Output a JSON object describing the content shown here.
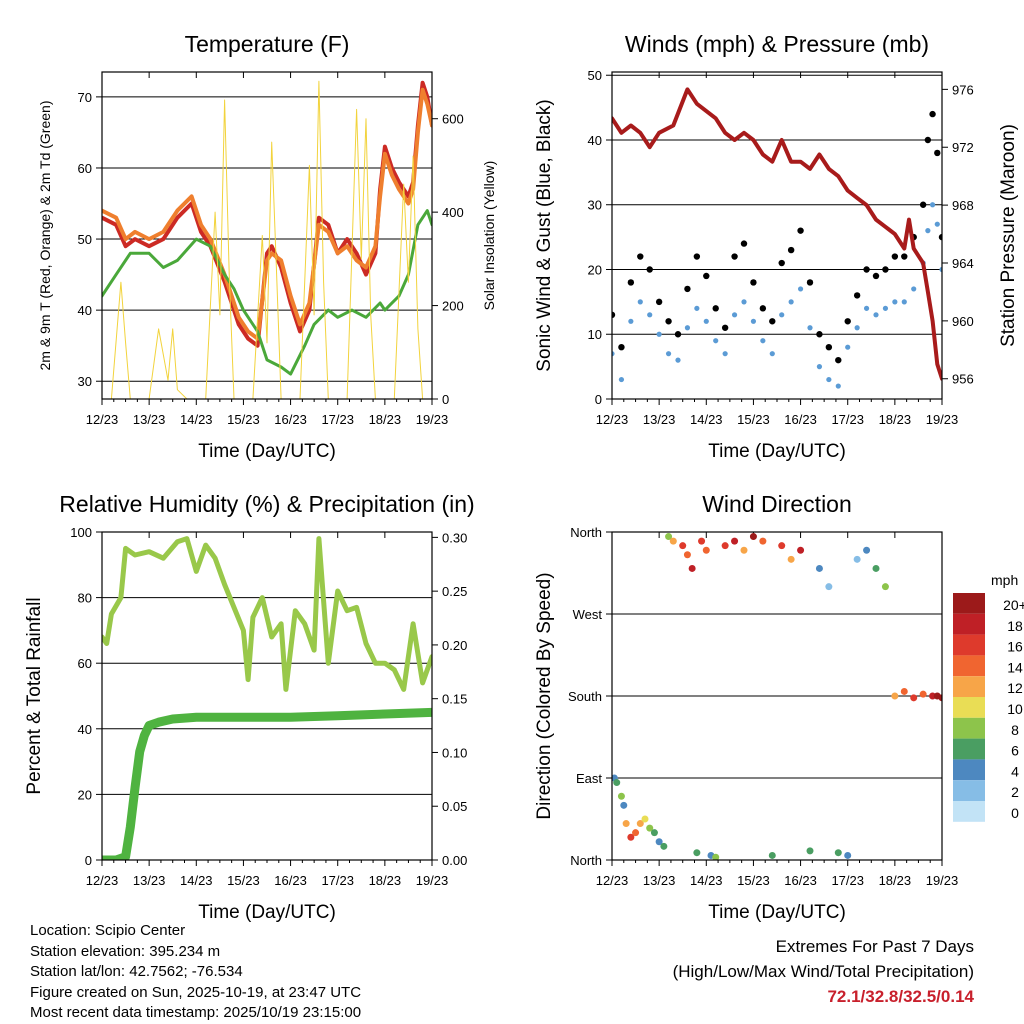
{
  "colors": {
    "temp_red": "#cc2a24",
    "temp_orange": "#ef7f2e",
    "dewpoint_green": "#4aa83a",
    "solar_yellow": "#f2d33c",
    "gust_black": "#000000",
    "wind_blue": "#5b9bd5",
    "pressure_maroon": "#a81b1b",
    "rh_lightgreen": "#99c84a",
    "precip_green": "#4fb340",
    "extremes_red": "#c8202c"
  },
  "chart_data": [
    {
      "id": "temperature",
      "type": "line",
      "title": "Temperature (F)",
      "xlabel": "Time (Day/UTC)",
      "ylabel": "2m & 9m T (Red, Orange) & 2m Td (Green)",
      "y2label": "Solar Insolation (Yellow)",
      "xticks": [
        "12/23",
        "13/23",
        "14/23",
        "15/23",
        "16/23",
        "17/23",
        "18/23",
        "19/23"
      ],
      "xlim": [
        0,
        7
      ],
      "ylim": [
        27.5,
        73.5
      ],
      "yticks": [
        30,
        40,
        50,
        60,
        70
      ],
      "y2lim": [
        0,
        700
      ],
      "y2ticks": [
        0,
        200,
        400,
        600
      ],
      "series": [
        {
          "name": "2m T",
          "color": "#cc2a24",
          "x": [
            0,
            0.3,
            0.5,
            0.7,
            1.0,
            1.3,
            1.6,
            1.9,
            2.1,
            2.3,
            2.6,
            2.8,
            2.9,
            3.1,
            3.3,
            3.5,
            3.6,
            3.8,
            4.0,
            4.2,
            4.4,
            4.6,
            4.8,
            5.0,
            5.2,
            5.4,
            5.6,
            5.8,
            5.9,
            6.0,
            6.15,
            6.3,
            6.5,
            6.6,
            6.7,
            6.8,
            6.9,
            7.0
          ],
          "y": [
            53,
            52,
            49,
            50,
            49,
            50,
            53,
            55,
            51,
            49,
            44,
            40,
            38,
            36,
            35,
            48,
            49,
            46,
            41,
            37,
            40,
            53,
            52,
            48,
            50,
            48,
            45,
            48,
            57,
            63,
            60,
            58,
            56,
            58,
            66,
            72,
            70,
            66
          ]
        },
        {
          "name": "9m T",
          "color": "#ef7f2e",
          "x": [
            0,
            0.3,
            0.5,
            0.7,
            1.0,
            1.3,
            1.6,
            1.9,
            2.1,
            2.3,
            2.6,
            2.8,
            2.9,
            3.1,
            3.3,
            3.5,
            3.6,
            3.8,
            4.0,
            4.2,
            4.4,
            4.6,
            4.8,
            5.0,
            5.2,
            5.4,
            5.6,
            5.8,
            5.9,
            6.0,
            6.15,
            6.3,
            6.5,
            6.6,
            6.7,
            6.8,
            6.9,
            7.0
          ],
          "y": [
            54,
            53,
            50,
            51,
            50,
            51,
            54,
            56,
            52,
            50,
            45,
            41,
            39,
            37,
            36,
            47,
            48,
            47,
            42,
            38,
            41,
            52,
            51,
            48,
            49,
            47,
            46,
            49,
            56,
            62,
            59,
            57,
            55,
            57,
            65,
            71,
            69,
            66
          ]
        },
        {
          "name": "2m Td",
          "color": "#4aa83a",
          "x": [
            0,
            0.3,
            0.6,
            1.0,
            1.3,
            1.6,
            2.0,
            2.3,
            2.6,
            2.8,
            3.0,
            3.3,
            3.5,
            3.8,
            4.0,
            4.3,
            4.5,
            4.8,
            5.0,
            5.3,
            5.6,
            5.9,
            6.0,
            6.3,
            6.5,
            6.7,
            6.9,
            7.0
          ],
          "y": [
            42,
            45,
            48,
            48,
            46,
            47,
            50,
            49,
            45,
            43,
            40,
            37,
            33,
            32,
            31,
            35,
            38,
            40,
            39,
            40,
            39,
            41,
            40,
            42,
            45,
            52,
            54,
            52
          ]
        },
        {
          "name": "Solar Insolation",
          "color": "#f2d33c",
          "axis": "y2",
          "x": [
            0,
            0.2,
            0.4,
            0.5,
            0.6,
            0.8,
            1.0,
            1.2,
            1.4,
            1.5,
            1.6,
            1.8,
            2.0,
            2.2,
            2.4,
            2.5,
            2.6,
            2.7,
            2.8,
            3.0,
            3.2,
            3.4,
            3.5,
            3.6,
            3.7,
            3.8,
            4.0,
            4.2,
            4.4,
            4.5,
            4.6,
            4.7,
            4.8,
            5.0,
            5.2,
            5.4,
            5.5,
            5.6,
            5.7,
            5.8,
            6.0,
            6.2,
            6.4,
            6.5,
            6.6,
            6.7,
            6.8,
            7.0
          ],
          "y": [
            0,
            0,
            250,
            120,
            0,
            0,
            0,
            150,
            40,
            150,
            20,
            0,
            0,
            0,
            400,
            180,
            640,
            260,
            0,
            0,
            0,
            350,
            120,
            550,
            280,
            0,
            0,
            0,
            500,
            180,
            680,
            250,
            0,
            0,
            0,
            620,
            300,
            600,
            180,
            0,
            0,
            0,
            460,
            250,
            520,
            150,
            0,
            0
          ]
        }
      ]
    },
    {
      "id": "winds",
      "type": "scatter",
      "title": "Winds (mph) & Pressure (mb)",
      "xlabel": "Time (Day/UTC)",
      "ylabel": "Sonic Wind & Gust (Blue, Black)",
      "y2label": "Station Pressure (Maroon)",
      "xticks": [
        "12/23",
        "13/23",
        "14/23",
        "15/23",
        "16/23",
        "17/23",
        "18/23",
        "19/23"
      ],
      "xlim": [
        0,
        7
      ],
      "ylim": [
        0,
        50.5
      ],
      "yticks": [
        0,
        10,
        20,
        30,
        40,
        50
      ],
      "y2lim": [
        954.6,
        977.2
      ],
      "y2ticks": [
        956,
        960,
        964,
        968,
        972,
        976
      ],
      "series": [
        {
          "name": "Gust",
          "color": "#000000",
          "x": [
            0,
            0.2,
            0.4,
            0.6,
            0.8,
            1.0,
            1.2,
            1.4,
            1.6,
            1.8,
            2.0,
            2.2,
            2.4,
            2.6,
            2.8,
            3.0,
            3.2,
            3.4,
            3.6,
            3.8,
            4.0,
            4.2,
            4.4,
            4.6,
            4.8,
            5.0,
            5.2,
            5.4,
            5.6,
            5.8,
            6.0,
            6.2,
            6.4,
            6.6,
            6.7,
            6.8,
            6.9,
            7.0
          ],
          "y": [
            13,
            8,
            18,
            22,
            20,
            15,
            12,
            10,
            17,
            22,
            19,
            14,
            11,
            22,
            24,
            18,
            14,
            12,
            21,
            23,
            26,
            18,
            10,
            8,
            6,
            12,
            16,
            20,
            19,
            20,
            22,
            22,
            25,
            30,
            40,
            44,
            38,
            25
          ]
        },
        {
          "name": "Wind",
          "color": "#5b9bd5",
          "x": [
            0,
            0.2,
            0.4,
            0.6,
            0.8,
            1.0,
            1.2,
            1.4,
            1.6,
            1.8,
            2.0,
            2.2,
            2.4,
            2.6,
            2.8,
            3.0,
            3.2,
            3.4,
            3.6,
            3.8,
            4.0,
            4.2,
            4.4,
            4.6,
            4.8,
            5.0,
            5.2,
            5.4,
            5.6,
            5.8,
            6.0,
            6.2,
            6.4,
            6.6,
            6.7,
            6.8,
            6.9,
            7.0
          ],
          "y": [
            7,
            3,
            12,
            15,
            13,
            10,
            7,
            6,
            11,
            14,
            12,
            9,
            7,
            13,
            15,
            12,
            9,
            7,
            13,
            15,
            17,
            11,
            5,
            3,
            2,
            8,
            11,
            14,
            13,
            14,
            15,
            15,
            17,
            21,
            26,
            30,
            27,
            20
          ]
        },
        {
          "name": "Pressure",
          "color": "#a81b1b",
          "axis": "y2",
          "x": [
            0,
            0.2,
            0.4,
            0.6,
            0.8,
            1.0,
            1.3,
            1.6,
            1.8,
            2.0,
            2.2,
            2.4,
            2.6,
            2.8,
            3.0,
            3.2,
            3.4,
            3.6,
            3.8,
            4.0,
            4.2,
            4.4,
            4.6,
            4.8,
            5.0,
            5.2,
            5.4,
            5.6,
            5.8,
            6.0,
            6.2,
            6.3,
            6.4,
            6.5,
            6.6,
            6.7,
            6.8,
            6.9,
            7.0
          ],
          "y": [
            974,
            973,
            973.5,
            973,
            972,
            973,
            973.5,
            976,
            975,
            974.5,
            974,
            973,
            972.5,
            973,
            972.5,
            971.5,
            971,
            972.5,
            971,
            971,
            970.5,
            971.5,
            970.5,
            970,
            969,
            968.5,
            968,
            967,
            966.5,
            966,
            965,
            967,
            965,
            964.5,
            964,
            962,
            960,
            957,
            956
          ]
        }
      ]
    },
    {
      "id": "humidity",
      "type": "line",
      "title": "Relative Humidity (%) & Precipitation (in)",
      "xlabel": "Time (Day/UTC)",
      "ylabel": "Percent & Total Rainfall",
      "xticks": [
        "12/23",
        "13/23",
        "14/23",
        "15/23",
        "16/23",
        "17/23",
        "18/23",
        "19/23"
      ],
      "xlim": [
        0,
        7
      ],
      "ylim": [
        0,
        100
      ],
      "yticks": [
        0,
        20,
        40,
        60,
        80,
        100
      ],
      "y2lim": [
        0,
        0.305
      ],
      "y2ticks": [
        "0.00",
        "0.05",
        "0.10",
        "0.15",
        "0.20",
        "0.25",
        "0.30"
      ],
      "series": [
        {
          "name": "Relative Humidity",
          "color": "#99c84a",
          "x": [
            0,
            0.1,
            0.2,
            0.4,
            0.5,
            0.7,
            1.0,
            1.3,
            1.6,
            1.8,
            2.0,
            2.2,
            2.4,
            2.6,
            2.8,
            3.0,
            3.1,
            3.2,
            3.4,
            3.6,
            3.8,
            3.9,
            4.1,
            4.3,
            4.5,
            4.6,
            4.8,
            5.0,
            5.2,
            5.4,
            5.6,
            5.8,
            6.0,
            6.2,
            6.4,
            6.6,
            6.8,
            7.0
          ],
          "y": [
            68,
            66,
            75,
            80,
            95,
            93,
            94,
            92,
            97,
            98,
            88,
            96,
            92,
            84,
            77,
            70,
            55,
            74,
            80,
            68,
            72,
            52,
            76,
            72,
            64,
            98,
            60,
            82,
            76,
            77,
            66,
            60,
            60,
            58,
            52,
            72,
            54,
            62
          ]
        },
        {
          "name": "Total Precipitation",
          "color": "#4fb340",
          "x": [
            0,
            0.3,
            0.5,
            0.6,
            0.7,
            0.8,
            0.9,
            1.0,
            1.2,
            1.5,
            2.0,
            3.0,
            4.0,
            5.0,
            6.0,
            7.0
          ],
          "y": [
            0,
            0,
            1,
            10,
            22,
            33,
            38,
            41,
            42,
            43,
            43.5,
            43.5,
            43.5,
            44,
            44.5,
            45
          ]
        }
      ]
    },
    {
      "id": "wind_direction",
      "type": "scatter",
      "title": "Wind Direction",
      "xlabel": "Time (Day/UTC)",
      "ylabel": "Direction (Colored By Speed)",
      "xticks": [
        "12/23",
        "13/23",
        "14/23",
        "15/23",
        "16/23",
        "17/23",
        "18/23",
        "19/23"
      ],
      "xlim": [
        0,
        7
      ],
      "ylim": [
        0,
        360
      ],
      "ylabels": [
        "North",
        "East",
        "South",
        "West",
        "North"
      ],
      "legend_title": "mph",
      "legend_labels": [
        "20+",
        "18",
        "16",
        "14",
        "12",
        "10",
        "8",
        "6",
        "4",
        "2",
        "0"
      ],
      "legend_colors": [
        "#9c1a1a",
        "#bf2026",
        "#de3a2c",
        "#f06530",
        "#f7a548",
        "#e9dd55",
        "#8dc44b",
        "#4a9e62",
        "#4d88c0",
        "#86bde6",
        "#c2e3f6"
      ],
      "series": [
        {
          "name": "Direction",
          "x": [
            0.05,
            0.1,
            0.2,
            0.25,
            0.3,
            0.4,
            0.5,
            0.6,
            0.7,
            0.8,
            0.9,
            1.0,
            1.1,
            1.2,
            1.3,
            1.5,
            1.6,
            1.7,
            1.8,
            1.9,
            2.0,
            2.1,
            2.2,
            2.4,
            2.6,
            2.8,
            3.0,
            3.2,
            3.4,
            3.6,
            3.8,
            4.0,
            4.2,
            4.4,
            4.6,
            4.8,
            5.0,
            5.2,
            5.4,
            5.6,
            5.8,
            6.0,
            6.2,
            6.4,
            6.6,
            6.8,
            6.9,
            7.0
          ],
          "y": [
            90,
            85,
            70,
            60,
            40,
            25,
            30,
            40,
            45,
            35,
            30,
            20,
            15,
            355,
            350,
            345,
            335,
            320,
            8,
            350,
            340,
            5,
            3,
            345,
            350,
            340,
            355,
            350,
            5,
            345,
            330,
            340,
            10,
            320,
            300,
            8,
            5,
            330,
            340,
            320,
            300,
            180,
            185,
            178,
            182,
            180,
            180,
            178
          ],
          "speed": [
            4,
            6,
            8,
            4,
            12,
            16,
            14,
            12,
            10,
            8,
            6,
            4,
            6,
            8,
            12,
            16,
            14,
            18,
            6,
            16,
            14,
            4,
            8,
            16,
            18,
            12,
            20,
            14,
            6,
            16,
            12,
            18,
            6,
            4,
            2,
            6,
            4,
            2,
            4,
            6,
            8,
            12,
            14,
            16,
            14,
            18,
            20,
            20
          ]
        }
      ]
    }
  ],
  "info": {
    "location": "Location: Scipio Center",
    "elevation": "Station elevation: 395.234 m",
    "latlon": "Station lat/lon: 42.7562; -76.534",
    "created": "Figure created on Sun, 2025-10-19, at 23:47 UTC",
    "latest": "Most recent data timestamp: 2025/10/19 23:15:00"
  },
  "extremes": {
    "title": "Extremes For Past 7 Days",
    "subtitle": "(High/Low/Max Wind/Total Precipitation)",
    "values": "72.1/32.8/32.5/0.14"
  }
}
